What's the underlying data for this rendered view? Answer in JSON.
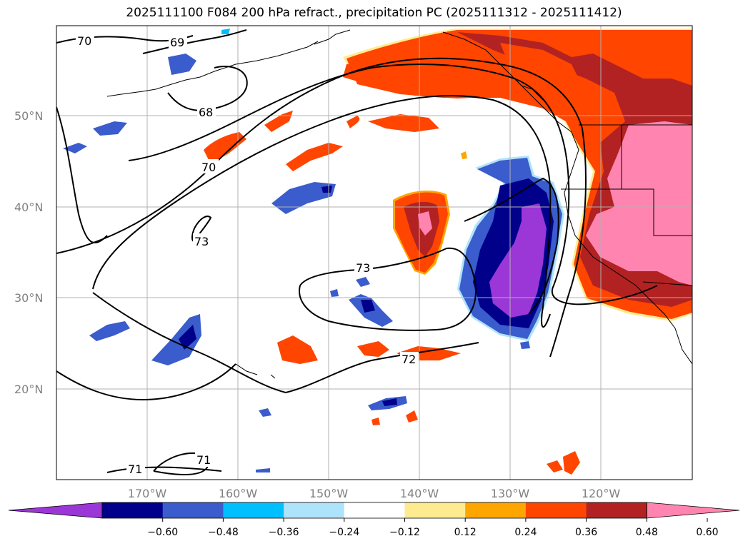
{
  "title": "2025111100 F084 200 hPa refract., precipitation PC (2025111312 - 2025111412)",
  "lat_labels": [
    "50°N",
    "40°N",
    "30°N",
    "20°N"
  ],
  "lon_labels": [
    "170°W",
    "160°W",
    "150°W",
    "140°W",
    "130°W",
    "120°W"
  ],
  "contour_labels": [
    "70",
    "69",
    "68",
    "70",
    "73",
    "73",
    "72",
    "71",
    "71"
  ],
  "colorbar": {
    "ticks": [
      "−0.60",
      "−0.48",
      "−0.36",
      "−0.24",
      "−0.12",
      "0.12",
      "0.24",
      "0.36",
      "0.48",
      "0.60"
    ],
    "colors": [
      "#9a37d6",
      "#00008b",
      "#3a5ccc",
      "#00bfff",
      "#aee4fb",
      "#ffffff",
      "#ffeb8f",
      "#ffa500",
      "#ff4500",
      "#b22222",
      "#ff85b0"
    ]
  },
  "colors": {
    "grid": "#b0b0b0",
    "coast": "#000000",
    "contour": "#000000"
  }
}
